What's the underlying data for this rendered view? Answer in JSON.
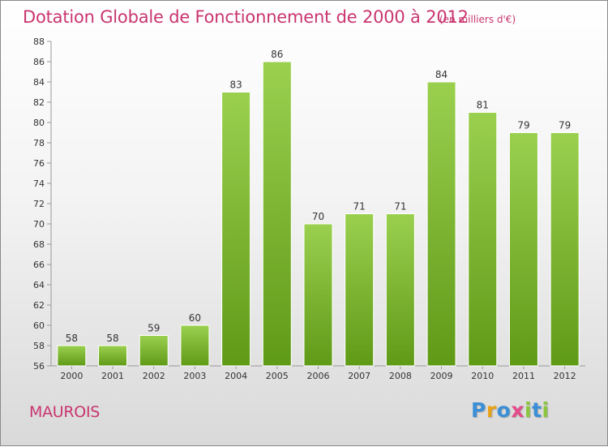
{
  "header": {
    "title": "Dotation Globale de Fonctionnement de 2000 à 2012",
    "subtitle": "(en milliers d'€)"
  },
  "footer": {
    "commune": "MAUROIS",
    "logo_letters": [
      "P",
      "r",
      "o",
      "x",
      "i",
      "t",
      "i"
    ],
    "logo_colors": [
      "#3a8fd6",
      "#e8a21a",
      "#3a8fd6",
      "#e34b8a",
      "#8cc63f",
      "#3a8fd6",
      "#8cc63f"
    ]
  },
  "colors": {
    "accent": "#c9356f",
    "bar_light": "#9bd04f",
    "bar_dark": "#5f9a17"
  },
  "chart_data": {
    "type": "bar",
    "title": "Dotation Globale de Fonctionnement de 2000 à 2012",
    "subtitle": "(en milliers d'€)",
    "categories": [
      "2000",
      "2001",
      "2002",
      "2003",
      "2004",
      "2005",
      "2006",
      "2007",
      "2008",
      "2009",
      "2010",
      "2011",
      "2012"
    ],
    "values": [
      58,
      58,
      59,
      60,
      83,
      86,
      70,
      71,
      71,
      84,
      81,
      79,
      79
    ],
    "ylim": [
      56,
      88
    ],
    "yticks": [
      56,
      58,
      60,
      62,
      64,
      66,
      68,
      70,
      72,
      74,
      76,
      78,
      80,
      82,
      84,
      86,
      88
    ],
    "grid": false,
    "xlabel": "",
    "ylabel": ""
  }
}
